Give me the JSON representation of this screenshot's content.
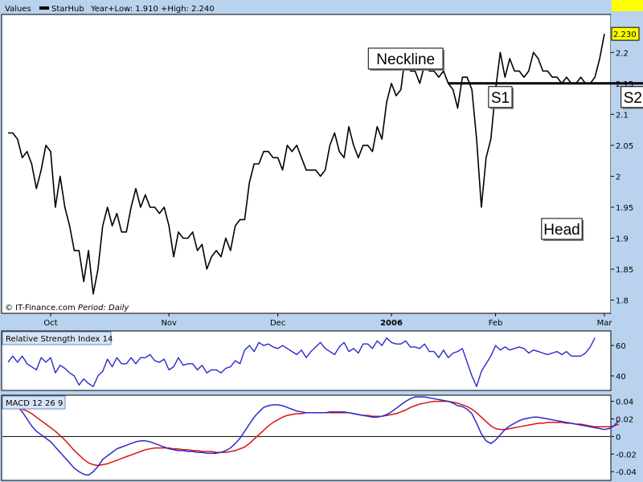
{
  "colors": {
    "background": "#b9d3ee",
    "panel": "#ffffff",
    "price_line": "#000000",
    "rsi_line": "#2a2acc",
    "macd_line": "#2a2acc",
    "signal_line": "#dd1111",
    "last_value_badge": "#ffff00"
  },
  "header": {
    "legend_title": "Values",
    "series_name": "StarHub",
    "year_range": "Year+Low: 1.910 +High: 2.240"
  },
  "footer": {
    "source": "© IT-Finance.com",
    "period_label": "Period:",
    "period_value": "Daily"
  },
  "x_axis": {
    "labels": [
      {
        "text": "Oct",
        "bold": false,
        "t": 9
      },
      {
        "text": "Nov",
        "bold": false,
        "t": 34
      },
      {
        "text": "Dec",
        "bold": false,
        "t": 57
      },
      {
        "text": "2006",
        "bold": true,
        "t": 81
      },
      {
        "text": "Feb",
        "bold": false,
        "t": 103
      },
      {
        "text": "Mar",
        "bold": false,
        "t": 126
      }
    ]
  },
  "annotations": [
    {
      "label": "Neckline",
      "x_t": 84,
      "y": 2.19
    },
    {
      "label": "S1",
      "x_t": 104,
      "y": 2.128
    },
    {
      "label": "S2",
      "x_t": 132,
      "y": 2.128
    },
    {
      "label": "Head",
      "x_t": 117,
      "y": 1.915
    }
  ],
  "neckline": {
    "t_start": 93,
    "t_end": 146,
    "y": 2.15
  },
  "chart_data": [
    {
      "type": "line",
      "panel": "price",
      "series": [
        {
          "name": "StarHub",
          "values": [
            2.07,
            2.07,
            2.06,
            2.03,
            2.04,
            2.02,
            1.98,
            2.01,
            2.05,
            2.04,
            1.95,
            2.0,
            1.95,
            1.92,
            1.88,
            1.88,
            1.83,
            1.88,
            1.81,
            1.85,
            1.92,
            1.95,
            1.92,
            1.94,
            1.91,
            1.91,
            1.95,
            1.98,
            1.95,
            1.97,
            1.95,
            1.95,
            1.94,
            1.95,
            1.92,
            1.87,
            1.91,
            1.9,
            1.9,
            1.91,
            1.88,
            1.89,
            1.85,
            1.87,
            1.88,
            1.87,
            1.9,
            1.88,
            1.92,
            1.93,
            1.93,
            1.99,
            2.02,
            2.02,
            2.04,
            2.04,
            2.03,
            2.03,
            2.01,
            2.05,
            2.04,
            2.05,
            2.03,
            2.01,
            2.01,
            2.01,
            2.0,
            2.01,
            2.05,
            2.07,
            2.04,
            2.03,
            2.08,
            2.05,
            2.03,
            2.05,
            2.05,
            2.04,
            2.08,
            2.06,
            2.12,
            2.15,
            2.13,
            2.14,
            2.2,
            2.17,
            2.17,
            2.15,
            2.18,
            2.17,
            2.17,
            2.16,
            2.17,
            2.15,
            2.14,
            2.11,
            2.16,
            2.16,
            2.14,
            2.06,
            1.95,
            2.03,
            2.06,
            2.14,
            2.2,
            2.16,
            2.19,
            2.17,
            2.17,
            2.16,
            2.17,
            2.2,
            2.19,
            2.17,
            2.17,
            2.16,
            2.16,
            2.15,
            2.16,
            2.15,
            2.15,
            2.16,
            2.15,
            2.15,
            2.16,
            2.19,
            2.23
          ]
        }
      ],
      "ylim": [
        1.78,
        2.26
      ],
      "yticks": [
        1.8,
        1.85,
        1.9,
        1.95,
        2.0,
        2.05,
        2.1,
        2.15,
        2.2
      ],
      "ytick_labels": [
        "1.8",
        "1.85",
        "1.9",
        "1.95",
        "2",
        "2.05",
        "2.1",
        "2.15",
        "2.2"
      ],
      "last_value": "2.230",
      "grid": false
    },
    {
      "type": "line",
      "panel": "rsi",
      "title": "Relative Strength Index 14",
      "series": [
        {
          "name": "RSI",
          "values": [
            49,
            53,
            49,
            53,
            48,
            46,
            44,
            52,
            49,
            52,
            42,
            47,
            45,
            42,
            40,
            34,
            38,
            35,
            33,
            40,
            43,
            51,
            46,
            52,
            48,
            48,
            52,
            48,
            52,
            52,
            54,
            50,
            49,
            51,
            44,
            46,
            52,
            47,
            48,
            48,
            44,
            47,
            42,
            44,
            44,
            42,
            45,
            46,
            50,
            48,
            57,
            60,
            56,
            62,
            60,
            61,
            59,
            58,
            60,
            58,
            56,
            54,
            57,
            52,
            56,
            59,
            62,
            58,
            56,
            54,
            59,
            62,
            56,
            58,
            55,
            61,
            61,
            58,
            63,
            60,
            65,
            62,
            61,
            61,
            63,
            59,
            59,
            58,
            61,
            56,
            56,
            52,
            57,
            52,
            55,
            56,
            58,
            49,
            40,
            33,
            43,
            48,
            53,
            60,
            57,
            59,
            57,
            58,
            59,
            58,
            55,
            57,
            56,
            55,
            54,
            55,
            56,
            54,
            56,
            53,
            53,
            53,
            55,
            59,
            65
          ]
        }
      ],
      "ylim": [
        31,
        69
      ],
      "yticks": [
        40,
        60
      ],
      "ytick_labels": [
        "40",
        "60"
      ],
      "last_value": "64.8143"
    },
    {
      "type": "line",
      "panel": "macd",
      "title": "MACD 12 26 9",
      "series": [
        {
          "name": "MACD",
          "values": [
            0.04,
            0.038,
            0.034,
            0.028,
            0.02,
            0.012,
            0.006,
            0.002,
            -0.002,
            -0.006,
            -0.012,
            -0.018,
            -0.024,
            -0.03,
            -0.036,
            -0.04,
            -0.043,
            -0.044,
            -0.04,
            -0.034,
            -0.026,
            -0.022,
            -0.018,
            -0.014,
            -0.012,
            -0.01,
            -0.008,
            -0.006,
            -0.005,
            -0.005,
            -0.006,
            -0.008,
            -0.01,
            -0.012,
            -0.014,
            -0.015,
            -0.016,
            -0.016,
            -0.017,
            -0.017,
            -0.018,
            -0.018,
            -0.019,
            -0.019,
            -0.019,
            -0.018,
            -0.016,
            -0.013,
            -0.008,
            -0.002,
            0.006,
            0.014,
            0.022,
            0.028,
            0.033,
            0.035,
            0.036,
            0.036,
            0.035,
            0.033,
            0.031,
            0.029,
            0.028,
            0.027,
            0.027,
            0.027,
            0.027,
            0.027,
            0.028,
            0.028,
            0.028,
            0.028,
            0.027,
            0.026,
            0.025,
            0.024,
            0.023,
            0.022,
            0.022,
            0.023,
            0.025,
            0.028,
            0.032,
            0.036,
            0.04,
            0.043,
            0.045,
            0.045,
            0.045,
            0.044,
            0.043,
            0.042,
            0.041,
            0.04,
            0.038,
            0.035,
            0.034,
            0.031,
            0.026,
            0.015,
            0.003,
            -0.005,
            -0.008,
            -0.004,
            0.002,
            0.008,
            0.012,
            0.015,
            0.018,
            0.02,
            0.021,
            0.022,
            0.022,
            0.021,
            0.02,
            0.019,
            0.018,
            0.017,
            0.016,
            0.015,
            0.014,
            0.013,
            0.012,
            0.011,
            0.01,
            0.009,
            0.008,
            0.009,
            0.012,
            0.018
          ]
        },
        {
          "name": "Signal",
          "values": [
            0.036,
            0.035,
            0.033,
            0.031,
            0.029,
            0.026,
            0.022,
            0.018,
            0.014,
            0.01,
            0.006,
            0.001,
            -0.004,
            -0.01,
            -0.016,
            -0.021,
            -0.026,
            -0.03,
            -0.032,
            -0.033,
            -0.032,
            -0.031,
            -0.029,
            -0.027,
            -0.025,
            -0.023,
            -0.021,
            -0.019,
            -0.017,
            -0.015,
            -0.014,
            -0.013,
            -0.013,
            -0.013,
            -0.013,
            -0.014,
            -0.014,
            -0.015,
            -0.015,
            -0.016,
            -0.016,
            -0.017,
            -0.017,
            -0.017,
            -0.018,
            -0.018,
            -0.018,
            -0.017,
            -0.016,
            -0.014,
            -0.012,
            -0.008,
            -0.003,
            0.002,
            0.007,
            0.012,
            0.016,
            0.019,
            0.022,
            0.024,
            0.025,
            0.026,
            0.026,
            0.027,
            0.027,
            0.027,
            0.027,
            0.027,
            0.027,
            0.027,
            0.027,
            0.027,
            0.027,
            0.026,
            0.025,
            0.024,
            0.024,
            0.023,
            0.023,
            0.023,
            0.024,
            0.025,
            0.026,
            0.028,
            0.03,
            0.033,
            0.035,
            0.037,
            0.038,
            0.039,
            0.04,
            0.04,
            0.04,
            0.04,
            0.039,
            0.038,
            0.036,
            0.034,
            0.031,
            0.027,
            0.022,
            0.017,
            0.012,
            0.009,
            0.008,
            0.008,
            0.009,
            0.01,
            0.011,
            0.012,
            0.013,
            0.014,
            0.015,
            0.015,
            0.016,
            0.016,
            0.016,
            0.016,
            0.015,
            0.015,
            0.014,
            0.014,
            0.013,
            0.012,
            0.011,
            0.011,
            0.011,
            0.011,
            0.012,
            0.014
          ]
        }
      ],
      "ylim": [
        -0.049,
        0.046
      ],
      "yticks": [
        -0.04,
        -0.02,
        0,
        0.02,
        0.04
      ],
      "ytick_labels": [
        "-0.04",
        "-0.02",
        "0",
        "0.02",
        "0.04"
      ],
      "zero_line": true
    }
  ]
}
